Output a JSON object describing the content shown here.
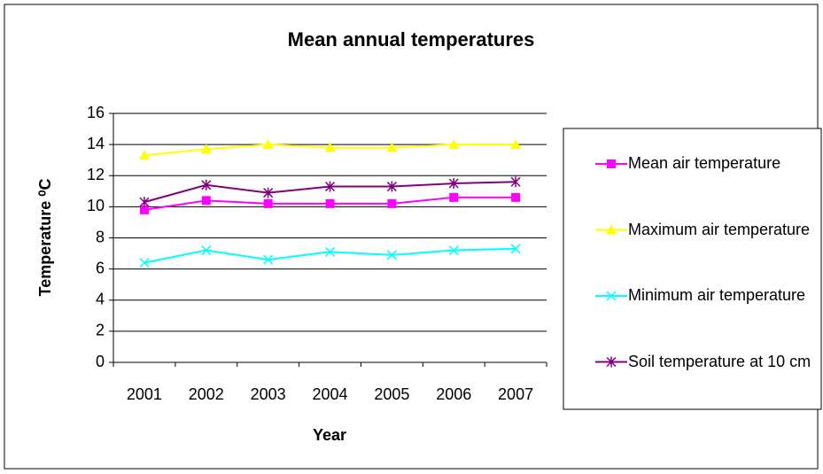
{
  "chart_data": {
    "type": "line",
    "title": "Mean annual temperatures",
    "x_label": "Year",
    "y_label": "Temperature ⁰C",
    "categories": [
      "2001",
      "2002",
      "2003",
      "2004",
      "2005",
      "2006",
      "2007"
    ],
    "series": [
      {
        "name": "Mean air temperature",
        "color": "#ff00ff",
        "marker": "square",
        "values": [
          9.8,
          10.4,
          10.2,
          10.2,
          10.2,
          10.6,
          10.6
        ]
      },
      {
        "name": "Maximum air temperature",
        "color": "#ffff00",
        "marker": "triangle",
        "values": [
          13.3,
          13.7,
          14.0,
          13.8,
          13.8,
          14.0,
          14.0
        ]
      },
      {
        "name": "Minimum air temperature",
        "color": "#00ffff",
        "marker": "x",
        "values": [
          6.4,
          7.2,
          6.6,
          7.1,
          6.9,
          7.2,
          7.3
        ]
      },
      {
        "name": "Soil temperature at 10 cm",
        "color": "#800080",
        "marker": "asterisk",
        "values": [
          10.3,
          11.4,
          10.9,
          11.3,
          11.3,
          11.5,
          11.6
        ]
      }
    ],
    "ylim": [
      0,
      16
    ],
    "yticks": [
      0,
      2,
      4,
      6,
      8,
      10,
      12,
      14,
      16
    ],
    "grid": true,
    "legend": "right"
  }
}
